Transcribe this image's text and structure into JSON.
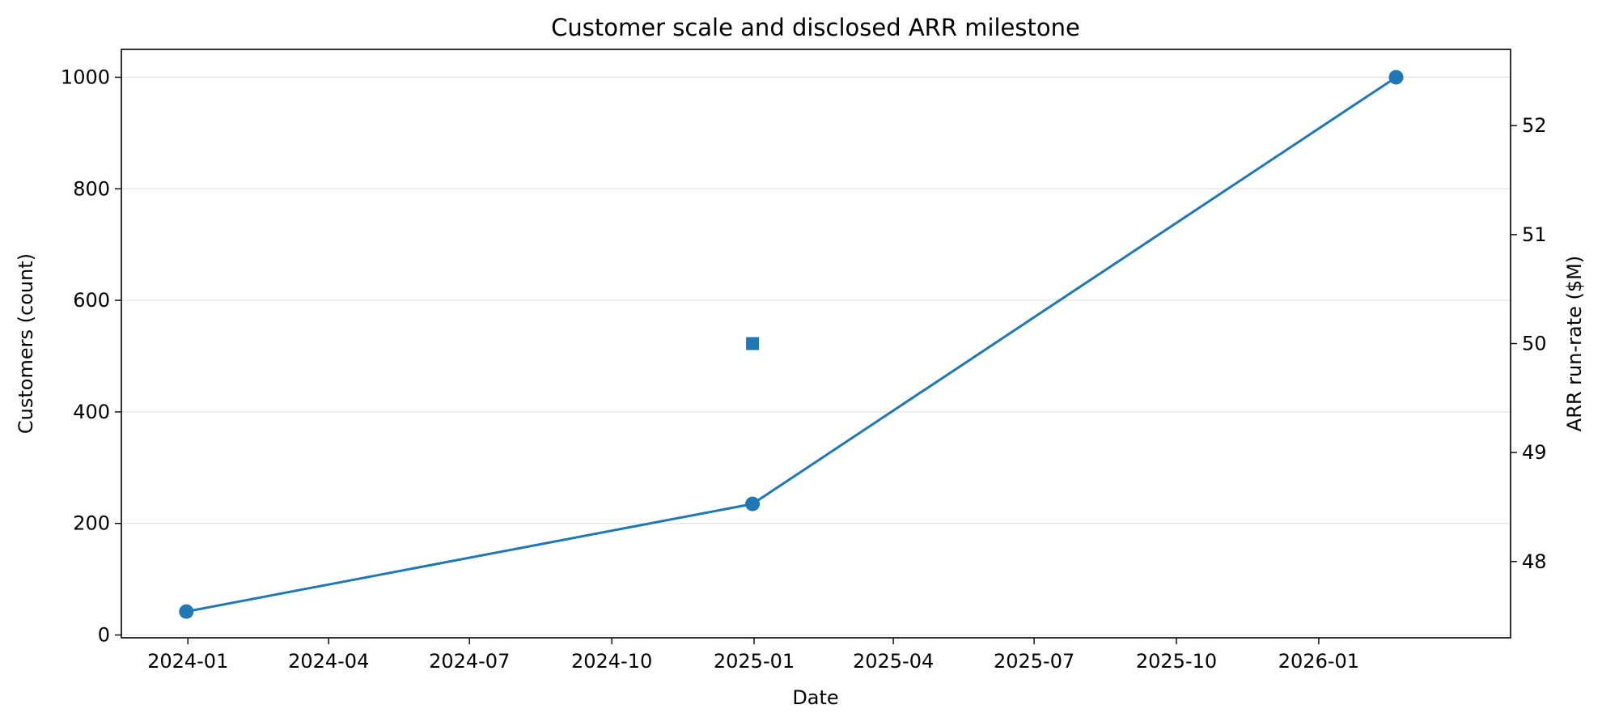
{
  "chart_data": {
    "type": "line",
    "title": "Customer scale and disclosed ARR milestone",
    "xlabel": "Date",
    "ylabel": "Customers (count)",
    "y2label": "ARR run-rate ($M)",
    "x_ticks": [
      "2024-01",
      "2024-04",
      "2024-07",
      "2024-10",
      "2025-01",
      "2025-04",
      "2025-07",
      "2025-10",
      "2026-01"
    ],
    "y_ticks": [
      "0",
      "200",
      "400",
      "600",
      "800",
      "1000"
    ],
    "y2_ticks": [
      "48",
      "49",
      "50",
      "51",
      "52"
    ],
    "xlim": [
      "2023-11-19",
      "2026-05-05"
    ],
    "ylim": [
      -5,
      1050
    ],
    "y2lim": [
      47.3,
      52.7
    ],
    "grid": "horizontal",
    "series": [
      {
        "axis": "left",
        "marker": "circle",
        "color": "#1f77b4",
        "points": [
          {
            "x": "2023-12-31",
            "y": 42
          },
          {
            "x": "2024-12-31",
            "y": 235
          },
          {
            "x": "2026-02-20",
            "y": 1000
          }
        ]
      },
      {
        "axis": "right",
        "marker": "square",
        "color": "#1f77b4",
        "points": [
          {
            "x": "2024-12-31",
            "y": 50
          }
        ]
      }
    ]
  }
}
